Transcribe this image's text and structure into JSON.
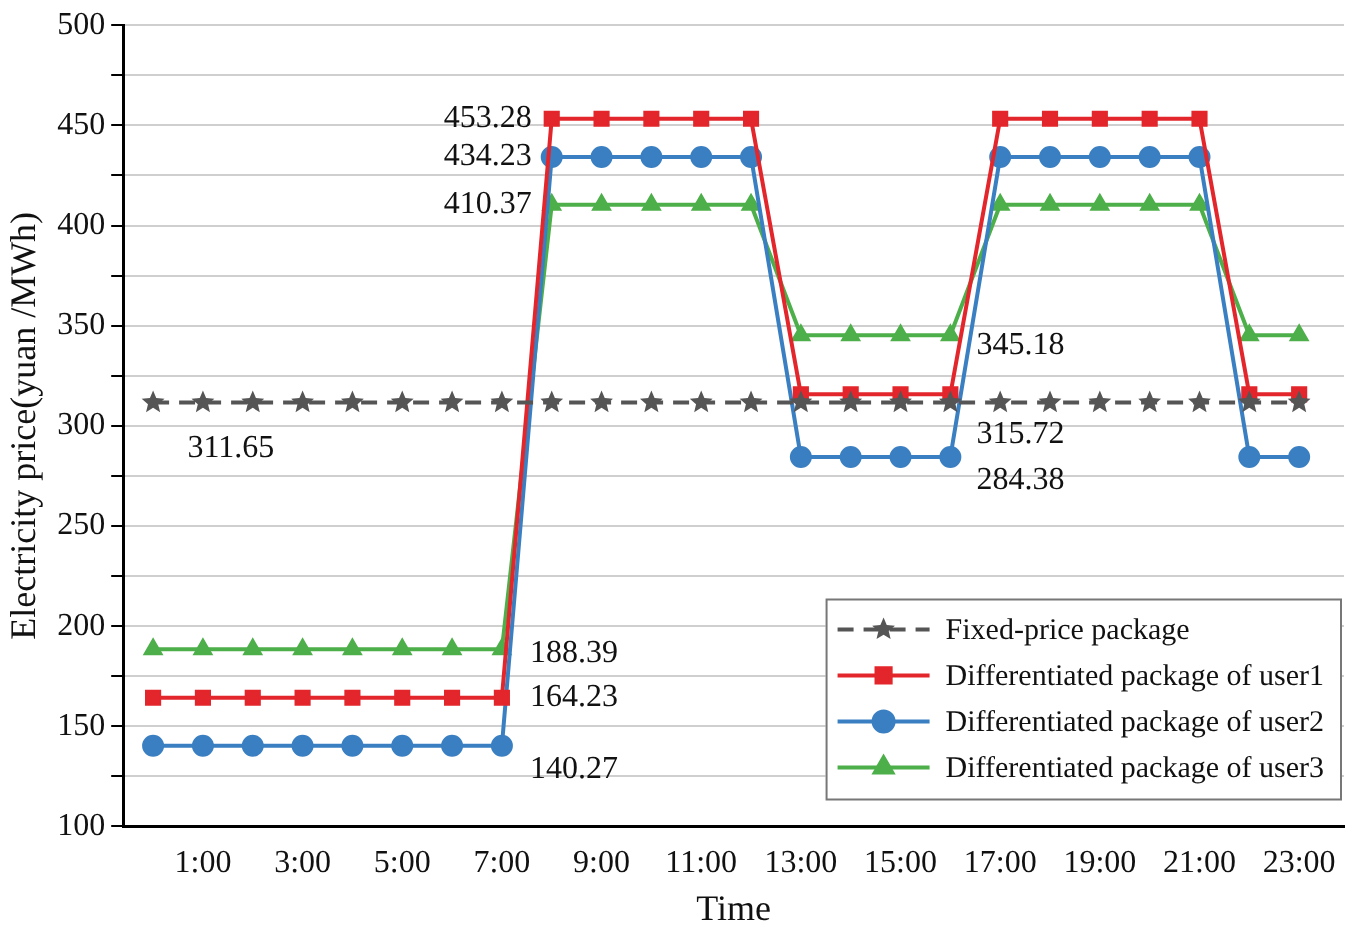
{
  "chart_data": {
    "type": "line",
    "xlabel": "Time",
    "ylabel": "Electricity price(yuan /MWh)",
    "categories": [
      null,
      "1:00",
      null,
      "3:00",
      null,
      "5:00",
      null,
      "7:00",
      null,
      "9:00",
      null,
      "11:00",
      null,
      "13:00",
      null,
      "15:00",
      null,
      "17:00",
      null,
      "19:00",
      null,
      "21:00",
      null,
      "23:00"
    ],
    "series": [
      {
        "name": "Fixed-price package",
        "color": "#555555",
        "marker": "star",
        "line_style": "dashed",
        "values": [
          311.65,
          311.65,
          311.65,
          311.65,
          311.65,
          311.65,
          311.65,
          311.65,
          311.65,
          311.65,
          311.65,
          311.65,
          311.65,
          311.65,
          311.65,
          311.65,
          311.65,
          311.65,
          311.65,
          311.65,
          311.65,
          311.65,
          311.65,
          311.65
        ]
      },
      {
        "name": "Differentiated package of user1",
        "color": "#e3262b",
        "marker": "square",
        "line_style": "solid",
        "values": [
          164.23,
          164.23,
          164.23,
          164.23,
          164.23,
          164.23,
          164.23,
          164.23,
          453.28,
          453.28,
          453.28,
          453.28,
          453.28,
          315.72,
          315.72,
          315.72,
          315.72,
          453.28,
          453.28,
          453.28,
          453.28,
          453.28,
          315.72,
          315.72
        ]
      },
      {
        "name": "Differentiated package of user2",
        "color": "#3a7fc1",
        "marker": "circle",
        "line_style": "solid",
        "values": [
          140.27,
          140.27,
          140.27,
          140.27,
          140.27,
          140.27,
          140.27,
          140.27,
          434.23,
          434.23,
          434.23,
          434.23,
          434.23,
          284.38,
          284.38,
          284.38,
          284.38,
          434.23,
          434.23,
          434.23,
          434.23,
          434.23,
          284.38,
          284.38
        ]
      },
      {
        "name": "Differentiated package of user3",
        "color": "#4daf4a",
        "marker": "triangle",
        "line_style": "solid",
        "values": [
          188.39,
          188.39,
          188.39,
          188.39,
          188.39,
          188.39,
          188.39,
          188.39,
          410.37,
          410.37,
          410.37,
          410.37,
          410.37,
          345.18,
          345.18,
          345.18,
          345.18,
          410.37,
          410.37,
          410.37,
          410.37,
          410.37,
          345.18,
          345.18
        ]
      }
    ],
    "ylim": [
      100,
      500
    ],
    "yticks": [
      100,
      {
        "value": 125,
        "label": null
      },
      150,
      {
        "value": 175,
        "label": null
      },
      200,
      {
        "value": 225,
        "label": null
      },
      250,
      {
        "value": 275,
        "label": null
      },
      300,
      {
        "value": 325,
        "label": null
      },
      350,
      {
        "value": 375,
        "label": null
      },
      400,
      {
        "value": 425,
        "label": null
      },
      450,
      {
        "value": 475,
        "label": null
      },
      500
    ],
    "grid": "y",
    "legend": "bottom right",
    "annotations": [
      {
        "text": "311.65",
        "x": "1:00",
        "y": 311.65
      },
      "453.28",
      "434.23",
      "410.37",
      {
        "text": "188.39",
        "x": "7:00",
        "y": 188.39
      },
      {
        "text": "164.23",
        "x": "7:00",
        "y": 164.23
      },
      {
        "text": "140.27",
        "x": "7:00",
        "y": 140.27
      },
      {
        "text": "345.18",
        "x": "15:00",
        "y": 345.18
      },
      {
        "text": "315.72",
        "x": "15:00",
        "y": 315.72
      },
      {
        "text": "284.38",
        "x": "15:00",
        "y": 284.38
      }
    ]
  }
}
